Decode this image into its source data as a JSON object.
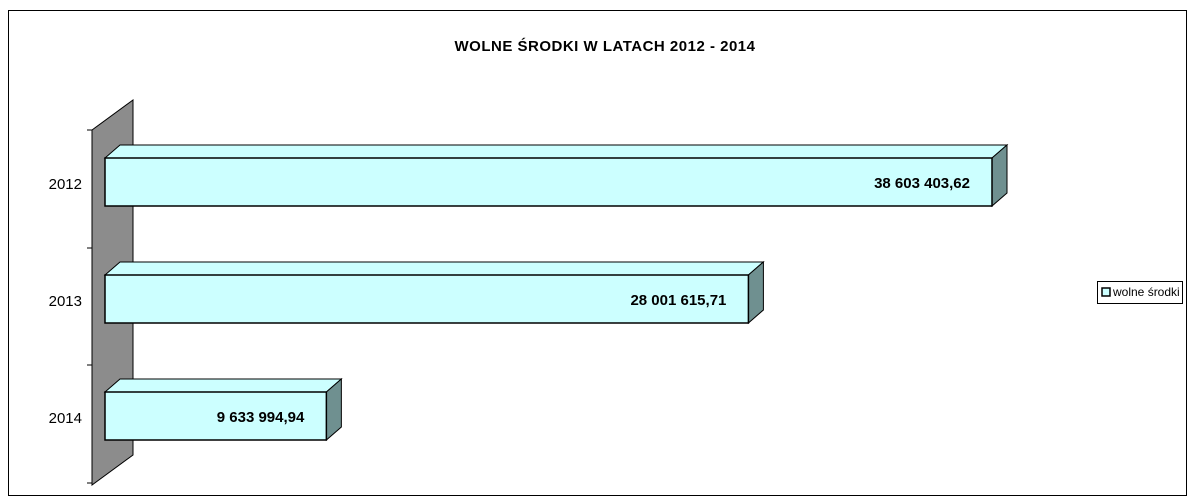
{
  "chart_data": {
    "type": "bar3d",
    "title": "WOLNE ŚRODKI W LATACH 2012 - 2014",
    "categories": [
      "2012",
      "2013",
      "2014"
    ],
    "series": [
      {
        "name": "wolne środki",
        "color": "#ccffff",
        "values": [
          38603403.62,
          28001615.71,
          9633994.94
        ],
        "value_labels": [
          "38 603 403,62",
          "28 001 615,71",
          "9 633 994,94"
        ]
      }
    ],
    "legend": "right"
  }
}
